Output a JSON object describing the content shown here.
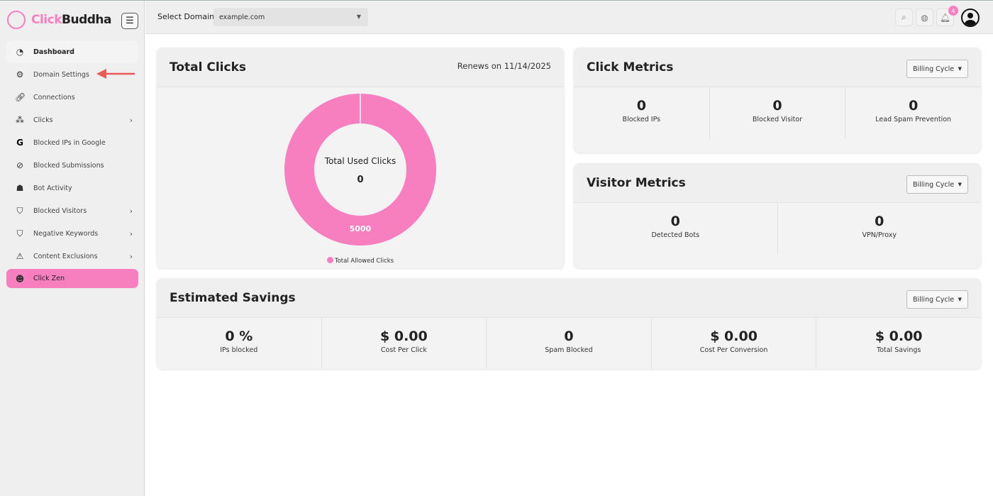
{
  "brand": {
    "name_pink": "Click",
    "name_dark": "Buddha"
  },
  "sidebar": {
    "items": [
      {
        "label": "Dashboard",
        "icon": "pie-chart-icon"
      },
      {
        "label": "Domain Settings",
        "icon": "settings-icon"
      },
      {
        "label": "Connections",
        "icon": "link-icon"
      },
      {
        "label": "Clicks",
        "icon": "click-icon",
        "chevron": true
      },
      {
        "label": "Blocked IPs in Google",
        "icon": "google-icon"
      },
      {
        "label": "Blocked Submissions",
        "icon": "ban-icon"
      },
      {
        "label": "Bot Activity",
        "icon": "bot-icon"
      },
      {
        "label": "Blocked Visitors",
        "icon": "shield-check-icon",
        "chevron": true
      },
      {
        "label": "Negative Keywords",
        "icon": "shield-alert-icon",
        "chevron": true
      },
      {
        "label": "Content Exclusions",
        "icon": "warning-icon",
        "chevron": true
      },
      {
        "label": "Click Zen",
        "icon": "buddha-icon"
      }
    ]
  },
  "topbar": {
    "select_label": "Select Domain",
    "domain": "example.com",
    "notification_count": "4"
  },
  "total_clicks": {
    "title": "Total Clicks",
    "renews": "Renews on 11/14/2025",
    "center_label": "Total Used Clicks",
    "center_value": "0",
    "slice_label": "5000",
    "legend": "Total Allowed Clicks"
  },
  "click_metrics": {
    "title": "Click Metrics",
    "period": "Billing Cycle",
    "items": [
      {
        "value": "0",
        "label": "Blocked IPs"
      },
      {
        "value": "0",
        "label": "Blocked Visitor"
      },
      {
        "value": "0",
        "label": "Lead Spam Prevention"
      }
    ]
  },
  "visitor_metrics": {
    "title": "Visitor Metrics",
    "period": "Billing Cycle",
    "items": [
      {
        "value": "0",
        "label": "Detected Bots"
      },
      {
        "value": "0",
        "label": "VPN/Proxy"
      }
    ]
  },
  "savings": {
    "title": "Estimated Savings",
    "period": "Billing Cycle",
    "items": [
      {
        "value": "0 %",
        "label": "IPs blocked"
      },
      {
        "value": "$ 0.00",
        "label": "Cost Per Click"
      },
      {
        "value": "0",
        "label": "Spam Blocked"
      },
      {
        "value": "$ 0.00",
        "label": "Cost Per Conversion"
      },
      {
        "value": "$ 0.00",
        "label": "Total Savings"
      }
    ]
  },
  "chart_data": {
    "type": "pie",
    "variant": "donut",
    "categories": [
      "Total Allowed Clicks",
      "Total Used Clicks"
    ],
    "values": [
      5000,
      0
    ],
    "colors": [
      "#f77fc0"
    ],
    "legend": "bottom"
  }
}
